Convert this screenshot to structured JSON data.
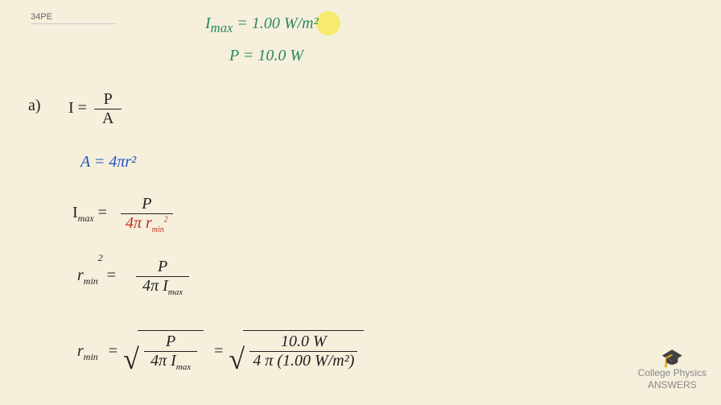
{
  "problem_label": "34PE",
  "given": {
    "line1": "I",
    "line1_sub": "max",
    "line1_eq": " = 1.00 W/",
    "line1_unit": "m²",
    "line2": "P = 10.0 W"
  },
  "part_label": "a)",
  "equations": {
    "eq1_lhs": "I  =",
    "eq1_num": "P",
    "eq1_den": "A",
    "eq2": "A = 4πr²",
    "eq3_lhs": "I",
    "eq3_lhs_sub": "max",
    "eq3_eq": "  =",
    "eq3_num": "P",
    "eq3_den": "4π r",
    "eq3_den_sub": "min",
    "eq3_den_sup": "2",
    "eq4_lhs": "r",
    "eq4_lhs_sub": "min",
    "eq4_lhs_sup": "2",
    "eq4_eq": "   =",
    "eq4_num": "P",
    "eq4_den": "4π I",
    "eq4_den_sub": "max",
    "eq5_lhs": "r",
    "eq5_lhs_sub": "min",
    "eq5_eq": "=",
    "eq5_num": "P",
    "eq5_den": "4π I",
    "eq5_den_sub": "max",
    "eq5_eq2": "=",
    "eq5_num2": "10.0 W",
    "eq5_den2": "4 π (1.00 W/m²)"
  },
  "logo": {
    "line1": "College Physics",
    "line2": "ANSWERS"
  },
  "colors": {
    "background": "#f5efdc",
    "given_text": "#2a8a5a",
    "highlight": "#f7e948",
    "area_formula": "#2050c0",
    "rmin_denom": "#c03020",
    "main_text": "#222222",
    "logo": "#888888"
  }
}
